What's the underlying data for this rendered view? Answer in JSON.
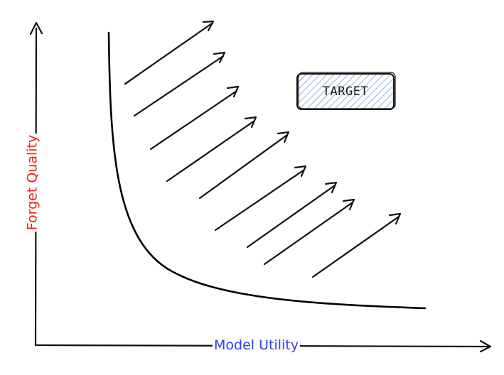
{
  "axes": {
    "x_label": "Model Utility",
    "y_label": "Forget Quality"
  },
  "target": {
    "label": "TARGET"
  },
  "colors": {
    "x_label": "#2f3ee8",
    "y_label": "#e8251c",
    "ink": "#111111",
    "target_fill": "#a9c8e8"
  }
}
